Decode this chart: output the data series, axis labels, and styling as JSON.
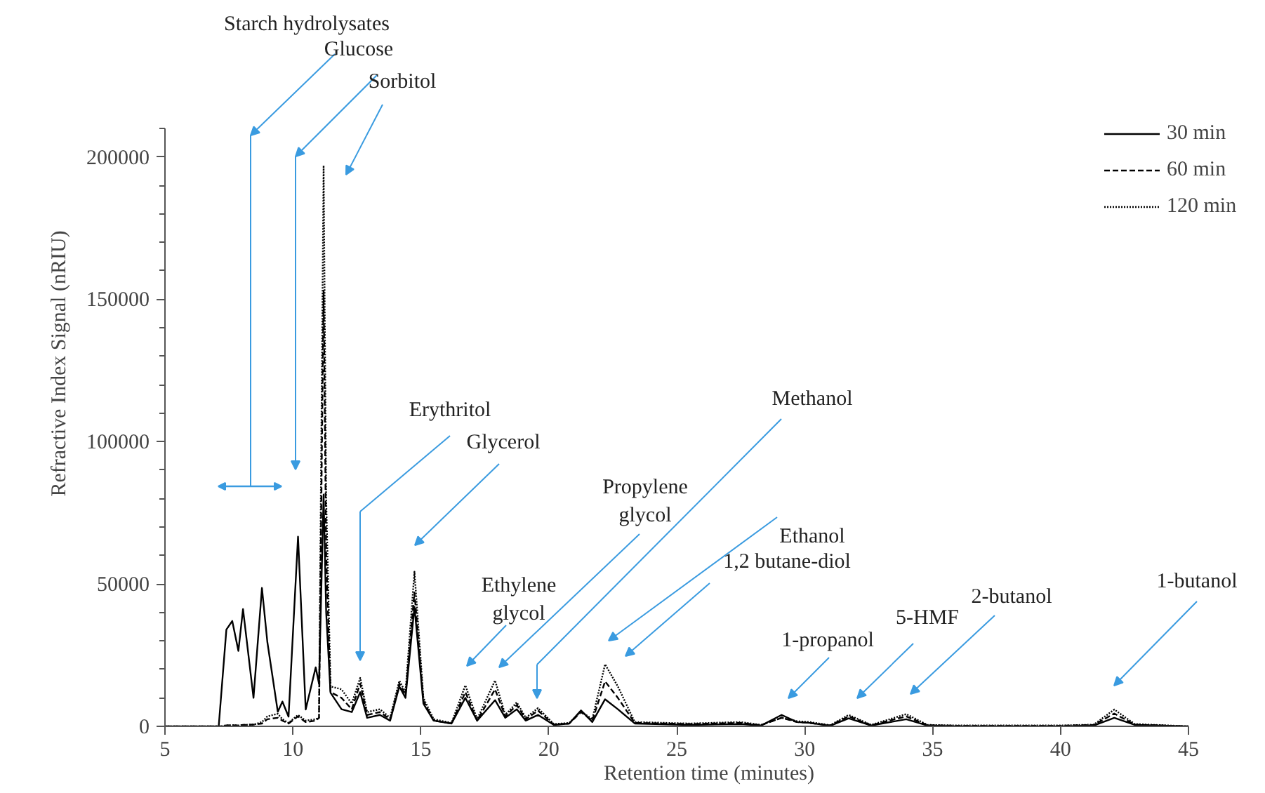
{
  "chart_data": {
    "type": "line",
    "xlabel": "Retention time (minutes)",
    "ylabel": "Refractive Index Signal (nRIU)",
    "x": [
      5,
      7.1,
      7.4,
      7.63,
      7.87,
      8.05,
      8.46,
      8.79,
      9.0,
      9.41,
      9.59,
      9.83,
      10.2,
      10.5,
      10.89,
      11.02,
      11.2,
      11.3,
      11.47,
      11.9,
      12.3,
      12.63,
      12.9,
      13.4,
      13.8,
      14.16,
      14.4,
      14.75,
      15.1,
      15.5,
      16.2,
      16.74,
      17.2,
      17.9,
      18.3,
      18.75,
      19.1,
      19.58,
      20.2,
      20.8,
      21.26,
      21.7,
      22.2,
      22.7,
      23.36,
      25.5,
      27.5,
      28.3,
      29.1,
      29.7,
      30.2,
      31.0,
      31.72,
      32.6,
      33.97,
      34.8,
      36,
      40,
      41.3,
      42.1,
      42.9,
      45
    ],
    "series": [
      {
        "name": "30 min",
        "color": "#000000",
        "line_style": "solid",
        "values": [
          0,
          0,
          34000,
          37000,
          26500,
          41200,
          10000,
          48600,
          29700,
          5100,
          8700,
          3400,
          66600,
          5900,
          20700,
          15000,
          81400,
          40000,
          11800,
          6000,
          5000,
          12000,
          3000,
          4000,
          2000,
          14000,
          10000,
          42000,
          8000,
          2000,
          1000,
          10000,
          2000,
          9200,
          3000,
          6000,
          2000,
          4000,
          500,
          1000,
          5600,
          1500,
          9500,
          6000,
          1000,
          500,
          800,
          300,
          4000,
          1500,
          1200,
          200,
          2800,
          300,
          2500,
          300,
          0,
          0,
          300,
          3000,
          500,
          0
        ]
      },
      {
        "name": "60 min",
        "color": "#000000",
        "line_style": "dashed",
        "values": [
          0,
          0,
          300,
          400,
          300,
          500,
          600,
          1000,
          2500,
          3000,
          2000,
          1000,
          3500,
          1500,
          2000,
          3000,
          153000,
          60000,
          12000,
          10000,
          6000,
          15000,
          4000,
          5000,
          2500,
          15000,
          11000,
          47000,
          9000,
          2000,
          1000,
          12000,
          2000,
          13000,
          3500,
          7500,
          2500,
          5500,
          600,
          1000,
          5000,
          2000,
          15800,
          10000,
          1200,
          800,
          1200,
          400,
          3000,
          1500,
          1200,
          300,
          3500,
          400,
          3500,
          400,
          200,
          200,
          500,
          4500,
          600,
          0
        ]
      },
      {
        "name": "120 min",
        "color": "#000000",
        "line_style": "dotted",
        "values": [
          0,
          0,
          300,
          400,
          300,
          500,
          600,
          1500,
          3500,
          4400,
          2500,
          1200,
          4000,
          2000,
          2500,
          3000,
          197000,
          80000,
          14000,
          13000,
          8000,
          17000,
          5000,
          6000,
          3000,
          16000,
          12000,
          54300,
          10000,
          2500,
          1200,
          14400,
          2500,
          16100,
          4000,
          8400,
          3000,
          6400,
          800,
          1200,
          5200,
          2500,
          21800,
          14000,
          1500,
          1000,
          1500,
          500,
          3000,
          1800,
          1500,
          400,
          4000,
          500,
          4300,
          500,
          300,
          300,
          600,
          5900,
          800,
          0
        ]
      }
    ],
    "xlim": [
      5,
      45
    ],
    "xticks": [
      5,
      10,
      15,
      20,
      25,
      30,
      35,
      40,
      45
    ],
    "ylim": [
      0,
      210000
    ],
    "yticks": [
      0,
      50000,
      100000,
      150000,
      200000
    ],
    "grid": false,
    "legend": "top right",
    "marker": "none",
    "annotations": [
      "Starch hydrolysates",
      "Glucose",
      "Sorbitol",
      "Erythritol",
      "Glycerol",
      "Ethylene glycol",
      "Propylene glycol",
      "Methanol",
      "Ethanol",
      "1,2 butane-diol",
      "1-propanol",
      "5-HMF",
      "2-butanol",
      "1-butanol"
    ]
  }
}
